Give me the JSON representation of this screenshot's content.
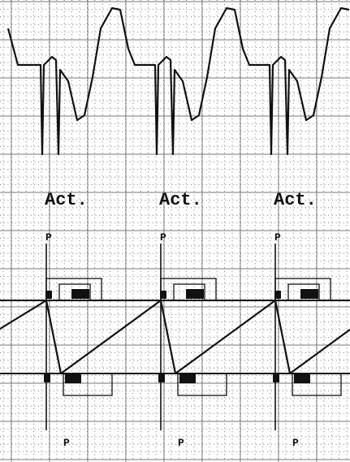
{
  "activity_labels": [
    "Act.",
    "Act.",
    "Act."
  ],
  "upper_markers": [
    "P",
    "P",
    "P"
  ],
  "lower_markers": [
    "P",
    "P",
    "P"
  ]
}
